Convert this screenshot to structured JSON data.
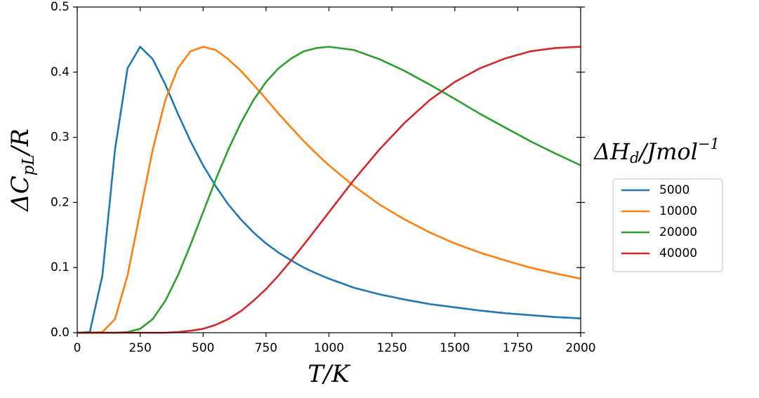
{
  "chart_data": {
    "type": "line",
    "xlabel": {
      "base": "T/K"
    },
    "ylabel": {
      "base": "ΔC",
      "sub": "pL",
      "rest": "/R"
    },
    "legend_title": {
      "base": "ΔH",
      "sub": "d",
      "rest": "/Jmol",
      "sup": "−1"
    },
    "x": [
      0,
      50,
      100,
      150,
      200,
      250,
      300,
      350,
      400,
      450,
      500,
      550,
      600,
      650,
      700,
      750,
      800,
      850,
      900,
      950,
      1000,
      1100,
      1200,
      1300,
      1400,
      1500,
      1600,
      1700,
      1800,
      1900,
      2000
    ],
    "series": [
      {
        "name": "5000",
        "color": "#1f77b4",
        "values": [
          0,
          0.001,
          0.088,
          0.281,
          0.406,
          0.439,
          0.42,
          0.381,
          0.336,
          0.294,
          0.257,
          0.225,
          0.197,
          0.174,
          0.154,
          0.137,
          0.123,
          0.111,
          0.1,
          0.091,
          0.083,
          0.069,
          0.059,
          0.051,
          0.044,
          0.039,
          0.034,
          0.03,
          0.027,
          0.024,
          0.022
        ]
      },
      {
        "name": "10000",
        "color": "#ff7f0e",
        "values": [
          0,
          0,
          0.001,
          0.021,
          0.088,
          0.185,
          0.281,
          0.357,
          0.406,
          0.432,
          0.439,
          0.434,
          0.42,
          0.402,
          0.381,
          0.359,
          0.336,
          0.315,
          0.294,
          0.275,
          0.257,
          0.225,
          0.197,
          0.174,
          0.154,
          0.137,
          0.123,
          0.111,
          0.1,
          0.091,
          0.083
        ]
      },
      {
        "name": "20000",
        "color": "#2ca02c",
        "values": [
          0,
          0,
          0,
          0,
          0.001,
          0.006,
          0.021,
          0.049,
          0.088,
          0.135,
          0.185,
          0.235,
          0.281,
          0.322,
          0.357,
          0.385,
          0.406,
          0.421,
          0.432,
          0.437,
          0.439,
          0.434,
          0.42,
          0.402,
          0.381,
          0.359,
          0.336,
          0.315,
          0.294,
          0.275,
          0.257
        ]
      },
      {
        "name": "40000",
        "color": "#d62728",
        "values": [
          0,
          0,
          0,
          0,
          0,
          0,
          0,
          0,
          0.001,
          0.003,
          0.006,
          0.012,
          0.021,
          0.033,
          0.049,
          0.067,
          0.088,
          0.111,
          0.135,
          0.16,
          0.185,
          0.235,
          0.281,
          0.322,
          0.357,
          0.385,
          0.406,
          0.421,
          0.432,
          0.437,
          0.439
        ]
      }
    ],
    "xlim": [
      0,
      2000
    ],
    "xticks": [
      0,
      250,
      500,
      750,
      1000,
      1250,
      1500,
      1750,
      2000
    ],
    "ylim": [
      0,
      0.5
    ],
    "yticks": [
      {
        "value": 0,
        "label": "0.0"
      },
      0.1,
      0.2,
      0.3,
      0.4,
      0.5
    ],
    "legend": "right"
  }
}
